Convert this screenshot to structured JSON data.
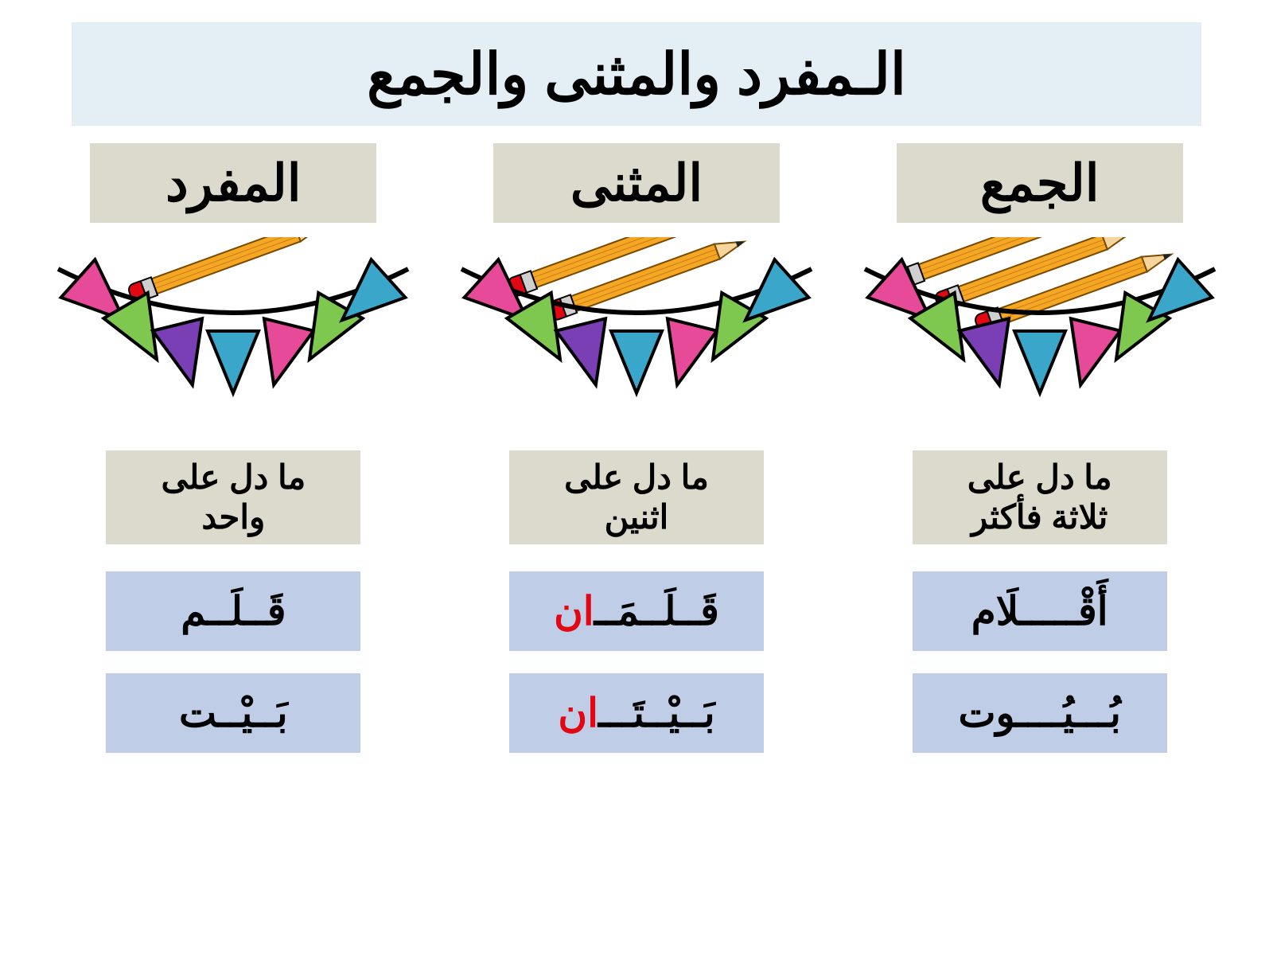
{
  "title": "الـمفرد والمثنى والجمع",
  "colors": {
    "title_bg": "#e3eff4",
    "header_bg": "#dcdacc",
    "definition_bg": "#dcdacc",
    "example_bg": "#bfcee6",
    "highlight": "#e30613",
    "text": "#000000",
    "bunting": [
      "#e84a9a",
      "#7ec850",
      "#7a3fb5",
      "#3aa6c9",
      "#e84a9a",
      "#7ec850",
      "#3aa6c9"
    ],
    "pencil_body": "#f5a623",
    "pencil_eraser": "#e30613",
    "pencil_band": "#cfcfcf",
    "pencil_tip": "#f5d59b",
    "pencil_lead": "#222222"
  },
  "fonts": {
    "title_size": 72,
    "header_size": 64,
    "definition_size": 42,
    "example_size": 50
  },
  "columns": [
    {
      "key": "singular",
      "header": "المفرد",
      "pencils": 1,
      "definition": "ما دل على\nواحد",
      "examples": [
        {
          "base": "قَــلَــم",
          "suffix": ""
        },
        {
          "base": "بَــيْــت",
          "suffix": ""
        }
      ]
    },
    {
      "key": "dual",
      "header": "المثنى",
      "pencils": 2,
      "definition": "ما دل على\nاثنين",
      "examples": [
        {
          "base": "قَــلَــمَــ",
          "suffix": "ان"
        },
        {
          "base": "بَــيْــتَـــ",
          "suffix": "ان"
        }
      ]
    },
    {
      "key": "plural",
      "header": "الجمع",
      "pencils": 3,
      "definition": "ما دل على\nثلاثة فأكثر",
      "examples": [
        {
          "base": "أَقْـــــلَام",
          "suffix": ""
        },
        {
          "base": "بُـــيُــــوت",
          "suffix": ""
        }
      ]
    }
  ]
}
